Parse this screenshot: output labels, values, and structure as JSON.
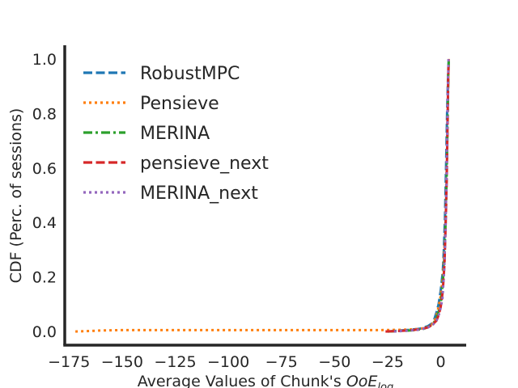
{
  "chart_data": {
    "type": "line",
    "title": "",
    "xlabel": "Average Values of Chunk's ",
    "xlabel_math": "OoE",
    "xlabel_sub": "log",
    "ylabel": "CDF (Perc. of sessions)",
    "xlim": [
      -177,
      12
    ],
    "ylim": [
      -0.05,
      1.05
    ],
    "x_ticks": [
      -175,
      -150,
      -125,
      -100,
      -75,
      -50,
      -25,
      0
    ],
    "x_tick_labels": [
      "−175",
      "−150",
      "−125",
      "−100",
      "−75",
      "−50",
      "−25",
      "0"
    ],
    "y_ticks": [
      0.0,
      0.2,
      0.4,
      0.6,
      0.8,
      1.0
    ],
    "y_tick_labels": [
      "0.0",
      "0.2",
      "0.4",
      "0.6",
      "0.8",
      "1.0"
    ],
    "grid": false,
    "legend_position": "top-left",
    "series": [
      {
        "name": "RobustMPC",
        "color": "#1f77b4",
        "dash": "dashed",
        "x": [
          -25,
          -20,
          -15,
          -10,
          -6,
          -4,
          -3,
          -2,
          -1,
          0,
          1,
          1.5,
          2,
          2.5,
          3,
          3.5,
          3.8
        ],
        "y": [
          0.0,
          0.003,
          0.006,
          0.01,
          0.02,
          0.03,
          0.045,
          0.07,
          0.1,
          0.15,
          0.22,
          0.3,
          0.42,
          0.6,
          0.8,
          0.95,
          1.0
        ]
      },
      {
        "name": "Pensieve",
        "color": "#ff7f0e",
        "dash": "dotted",
        "x": [
          -172,
          -165,
          -160,
          -150,
          -125,
          -100,
          -75,
          -50,
          -30,
          -20,
          -12,
          -8,
          -5,
          -3,
          -2,
          -1,
          0,
          1,
          2,
          2.5,
          3,
          3.5,
          3.8
        ],
        "y": [
          0.0,
          0.002,
          0.004,
          0.005,
          0.005,
          0.005,
          0.005,
          0.005,
          0.005,
          0.006,
          0.008,
          0.012,
          0.02,
          0.035,
          0.06,
          0.09,
          0.13,
          0.2,
          0.35,
          0.5,
          0.7,
          0.9,
          1.0
        ]
      },
      {
        "name": "MERINA",
        "color": "#2ca02c",
        "dash": "dashdot",
        "x": [
          -25,
          -18,
          -12,
          -8,
          -5,
          -3,
          -1.5,
          0,
          1,
          1.8,
          2.4,
          2.9,
          3.3,
          3.6,
          3.8
        ],
        "y": [
          0.0,
          0.002,
          0.005,
          0.01,
          0.02,
          0.035,
          0.06,
          0.1,
          0.18,
          0.28,
          0.42,
          0.6,
          0.8,
          0.95,
          1.0
        ]
      },
      {
        "name": "pensieve_next",
        "color": "#d62728",
        "dash": "dashed",
        "x": [
          -26,
          -20,
          -15,
          -10,
          -6,
          -4,
          -2,
          -1,
          0,
          1,
          1.8,
          2.3,
          2.8,
          3.2,
          3.5,
          3.7
        ],
        "y": [
          0.0,
          0.002,
          0.004,
          0.008,
          0.015,
          0.025,
          0.04,
          0.06,
          0.09,
          0.15,
          0.25,
          0.38,
          0.55,
          0.75,
          0.92,
          0.98
        ]
      },
      {
        "name": "MERINA_next",
        "color": "#9467bd",
        "dash": "dotted",
        "x": [
          -22,
          -16,
          -11,
          -7,
          -4,
          -2,
          -0.5,
          0.8,
          1.6,
          2.2,
          2.7,
          3.1,
          3.4,
          3.7
        ],
        "y": [
          0.0,
          0.003,
          0.006,
          0.012,
          0.022,
          0.04,
          0.07,
          0.12,
          0.22,
          0.36,
          0.55,
          0.75,
          0.9,
          1.0
        ]
      }
    ]
  }
}
